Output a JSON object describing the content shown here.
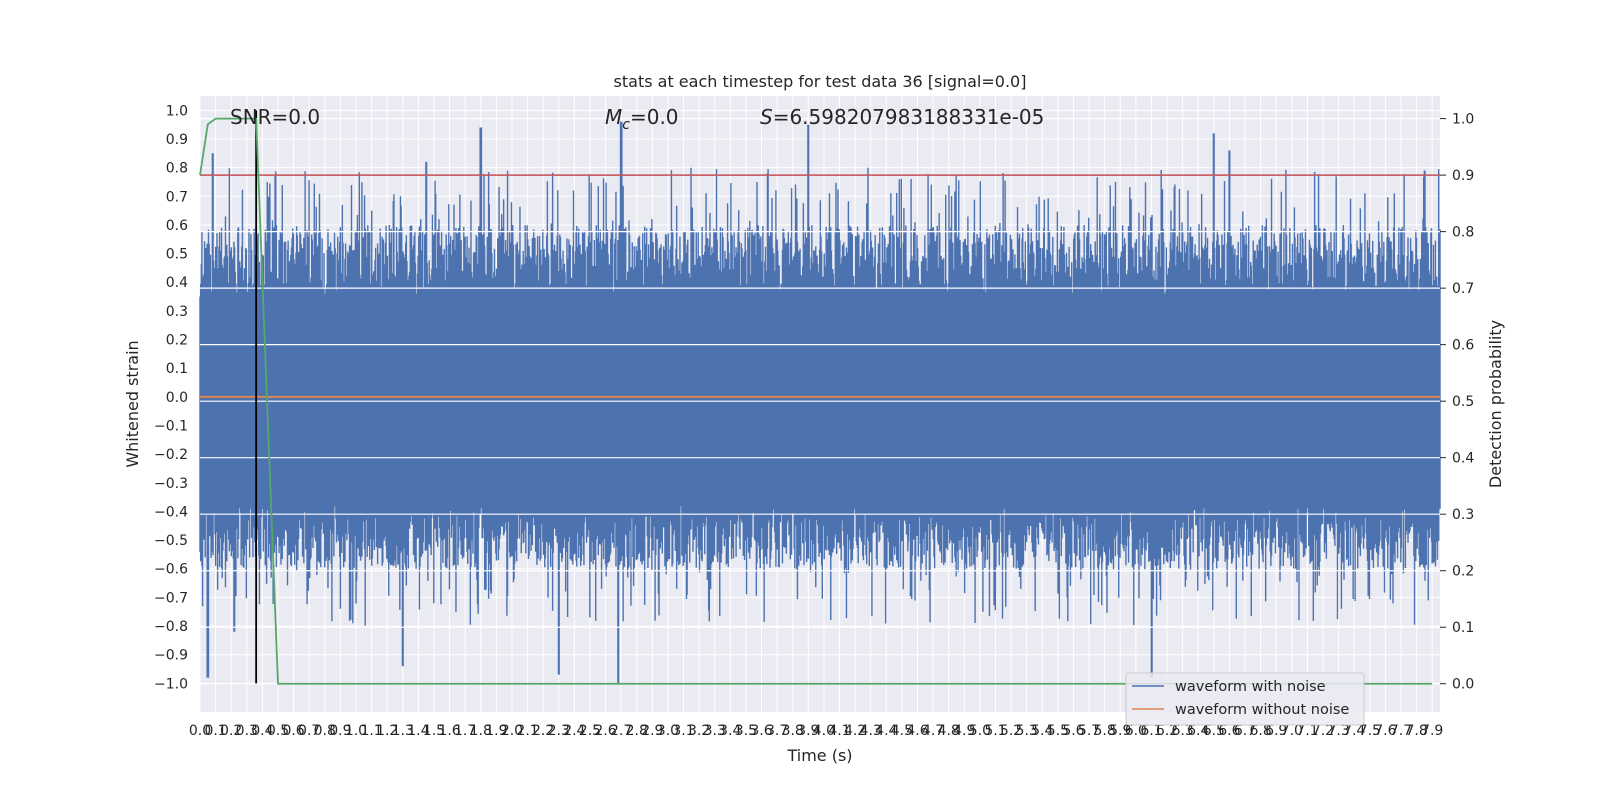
{
  "chart_data": {
    "type": "line",
    "title": "stats at each timestep for test data 36 [signal=0.0]",
    "xlabel": "Time (s)",
    "ylabel": "Whitened strain",
    "y2label": "Detection probability",
    "xlim": [
      0.0,
      7.95
    ],
    "ylim": [
      -1.1,
      1.05
    ],
    "y2lim": [
      -0.05,
      1.04
    ],
    "x_ticks": [
      "0.0",
      "0.1",
      "0.2",
      "0.3",
      "0.4",
      "0.5",
      "0.6",
      "0.7",
      "0.8",
      "0.9",
      "1.0",
      "1.1",
      "1.2",
      "1.3",
      "1.4",
      "1.5",
      "1.6",
      "1.7",
      "1.8",
      "1.9",
      "2.0",
      "2.1",
      "2.2",
      "2.3",
      "2.4",
      "2.5",
      "2.6",
      "2.7",
      "2.8",
      "2.9",
      "3.0",
      "3.1",
      "3.2",
      "3.3",
      "3.4",
      "3.5",
      "3.6",
      "3.7",
      "3.8",
      "3.9",
      "4.0",
      "4.1",
      "4.2",
      "4.3",
      "4.4",
      "4.5",
      "4.6",
      "4.7",
      "4.8",
      "4.9",
      "5.0",
      "5.1",
      "5.2",
      "5.3",
      "5.4",
      "5.5",
      "5.6",
      "5.7",
      "5.8",
      "5.9",
      "6.0",
      "6.1",
      "6.2",
      "6.3",
      "6.4",
      "6.5",
      "6.6",
      "6.7",
      "6.8",
      "6.9",
      "7.0",
      "7.1",
      "7.2",
      "7.3",
      "7.4",
      "7.5",
      "7.6",
      "7.7",
      "7.8",
      "7.9"
    ],
    "y_ticks": [
      "1.0",
      "0.9",
      "0.8",
      "0.7",
      "0.6",
      "0.5",
      "0.4",
      "0.3",
      "0.2",
      "0.1",
      "0.0",
      "-0.1",
      "-0.2",
      "-0.3",
      "-0.4",
      "-0.5",
      "-0.6",
      "-0.7",
      "-0.8",
      "-0.9",
      "-1.0"
    ],
    "y2_ticks": [
      "1.0",
      "0.9",
      "0.8",
      "0.7",
      "0.6",
      "0.5",
      "0.4",
      "0.3",
      "0.2",
      "0.1",
      "0.0"
    ],
    "annotations": {
      "snr": "SNR=0.0",
      "mc_symbol": "M",
      "mc_sub": "c",
      "mc_value": "=0.0",
      "s_symbol": "S",
      "s_value": "=6.598207983188331e-05"
    },
    "series": [
      {
        "name": "waveform with noise",
        "color": "#4c72b0",
        "axis": "left",
        "description_of_shape": "dense random noise between roughly -1.0 and 0.96",
        "envelope": {
          "typical_range": [
            -0.55,
            0.6
          ],
          "max": 0.96,
          "min": -1.0
        },
        "peaks": [
          {
            "x": 0.05,
            "y": -0.98
          },
          {
            "x": 0.08,
            "y": 0.85
          },
          {
            "x": 0.22,
            "y": -0.82
          },
          {
            "x": 1.8,
            "y": 0.94
          },
          {
            "x": 1.45,
            "y": 0.82
          },
          {
            "x": 2.7,
            "y": 0.96
          },
          {
            "x": 2.68,
            "y": -1.0
          },
          {
            "x": 3.9,
            "y": 0.95
          },
          {
            "x": 6.5,
            "y": 0.92
          },
          {
            "x": 6.6,
            "y": 0.86
          },
          {
            "x": 6.1,
            "y": -0.98
          },
          {
            "x": 7.85,
            "y": 0.79
          },
          {
            "x": 2.3,
            "y": -0.97
          },
          {
            "x": 1.3,
            "y": -0.94
          }
        ]
      },
      {
        "name": "waveform without noise",
        "color": "#dd8452",
        "axis": "left",
        "x": [
          0.0,
          7.95
        ],
        "y": [
          0.0,
          0.0
        ]
      },
      {
        "name": "",
        "color": "#55a868",
        "axis": "right",
        "x": [
          0.0,
          0.05,
          0.1,
          0.2,
          0.3,
          0.36,
          0.5,
          7.9
        ],
        "y": [
          0.9,
          0.99,
          1.0,
          1.0,
          1.0,
          1.0,
          0.0,
          0.0
        ]
      }
    ],
    "threshold": {
      "axis": "right",
      "value": 0.9,
      "color": "#c44e52"
    },
    "marker": {
      "x": 0.36,
      "y_range": [
        -1.0,
        1.0
      ],
      "color": "#000000"
    },
    "legend": {
      "placement": "lower-right",
      "entries": [
        "waveform with noise",
        "waveform without noise"
      ]
    },
    "grid": true,
    "background": "#eaeaf2"
  }
}
